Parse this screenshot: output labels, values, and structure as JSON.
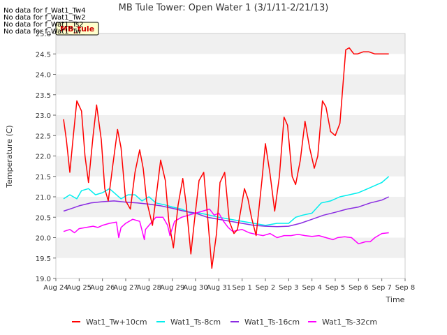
{
  "chart_data": {
    "type": "line",
    "title": "MB Tule Tower: Open Water 1 (3/1/11-2/21/13)",
    "xlabel": "Time",
    "ylabel": "Temperature (C)",
    "ylim": [
      19.0,
      25.0
    ],
    "xlim": [
      0,
      15
    ],
    "grid": "horizontal bands",
    "yticks": [
      "19.0",
      "19.5",
      "20.0",
      "20.5",
      "21.0",
      "21.5",
      "22.0",
      "22.5",
      "23.0",
      "23.5",
      "24.0",
      "24.5",
      "25.0"
    ],
    "xticks": [
      "Aug 24",
      "Aug 25",
      "Aug 26",
      "Aug 27",
      "Aug 28",
      "Aug 29",
      "Aug 30",
      "Aug 31",
      "Sep 1",
      "Sep 2",
      "Sep 3",
      "Sep 4",
      "Sep 5",
      "Sep 6",
      "Sep 7",
      "Sep 8"
    ],
    "no_data_messages": [
      "No data for f_Wat1_Tw4",
      "No data for f_Wat1_Tw2",
      "No data for f_Wat1_Ts2",
      "No data for f_Wat1_Tw_"
    ],
    "tooltip_label": "MB_tule",
    "legend": {
      "placement": "bottom"
    },
    "series": [
      {
        "name": "Wat1_Tw+10cm",
        "color": "#ff0000",
        "x": [
          0.33,
          0.45,
          0.6,
          0.75,
          0.9,
          1.1,
          1.25,
          1.4,
          1.6,
          1.75,
          1.95,
          2.1,
          2.25,
          2.45,
          2.65,
          2.8,
          3.0,
          3.2,
          3.4,
          3.6,
          3.75,
          3.9,
          4.15,
          4.35,
          4.5,
          4.7,
          4.85,
          5.05,
          5.25,
          5.45,
          5.6,
          5.8,
          5.95,
          6.15,
          6.35,
          6.55,
          6.7,
          6.9,
          7.05,
          7.25,
          7.45,
          7.65,
          7.8,
          7.95,
          8.1,
          8.25,
          8.4,
          8.6,
          8.85,
          9.0,
          9.2,
          9.4,
          9.6,
          9.8,
          9.95,
          10.15,
          10.3,
          10.5,
          10.7,
          10.9,
          11.1,
          11.25,
          11.45,
          11.6,
          11.8,
          12.0,
          12.2,
          12.45,
          12.6,
          12.8,
          12.95,
          13.2,
          13.45,
          13.7,
          13.85,
          14.0,
          14.05,
          14.15,
          14.3
        ],
        "values": [
          22.9,
          22.4,
          21.6,
          22.5,
          23.35,
          23.1,
          22.0,
          21.35,
          22.5,
          23.25,
          22.4,
          21.2,
          20.9,
          21.8,
          22.65,
          22.2,
          20.9,
          20.7,
          21.6,
          22.15,
          21.7,
          20.9,
          20.3,
          21.2,
          21.9,
          21.4,
          20.4,
          19.75,
          20.8,
          21.45,
          20.8,
          19.6,
          20.4,
          21.4,
          21.6,
          20.3,
          19.25,
          20.1,
          21.35,
          21.6,
          20.4,
          20.1,
          20.2,
          20.7,
          21.2,
          20.95,
          20.5,
          20.05,
          21.4,
          22.3,
          21.55,
          20.65,
          21.5,
          22.95,
          22.75,
          21.5,
          21.3,
          21.9,
          22.85,
          22.2,
          21.7,
          22.0,
          23.35,
          23.2,
          22.6,
          22.5,
          22.8,
          24.6,
          24.65,
          24.5,
          24.5,
          24.55,
          24.55,
          24.5,
          24.5,
          24.5,
          24.5,
          24.5,
          24.5
        ]
      },
      {
        "name": "Wat1_Ts-8cm",
        "color": "#00eeee",
        "x": [
          0.33,
          0.6,
          0.9,
          1.1,
          1.4,
          1.7,
          2.0,
          2.3,
          2.5,
          2.8,
          3.1,
          3.4,
          3.7,
          4.0,
          4.3,
          4.7,
          5.0,
          5.4,
          5.8,
          6.2,
          6.6,
          7.0,
          7.5,
          8.0,
          8.5,
          9.0,
          9.5,
          10.0,
          10.3,
          10.6,
          11.0,
          11.4,
          11.8,
          12.2,
          12.6,
          13.0,
          13.4,
          13.8,
          14.0,
          14.3
        ],
        "values": [
          20.95,
          21.05,
          20.95,
          21.15,
          21.2,
          21.05,
          21.1,
          21.2,
          21.1,
          20.95,
          21.05,
          21.05,
          20.9,
          21.0,
          20.85,
          20.8,
          20.75,
          20.7,
          20.6,
          20.6,
          20.55,
          20.5,
          20.45,
          20.4,
          20.35,
          20.3,
          20.35,
          20.35,
          20.5,
          20.55,
          20.6,
          20.85,
          20.9,
          21.0,
          21.05,
          21.1,
          21.2,
          21.3,
          21.35,
          21.5
        ]
      },
      {
        "name": "Wat1_Ts-16cm",
        "color": "#8a2be2",
        "x": [
          0.33,
          0.7,
          1.0,
          1.5,
          2.0,
          2.5,
          3.0,
          3.5,
          4.0,
          4.5,
          5.0,
          5.5,
          6.0,
          6.5,
          7.0,
          7.5,
          8.0,
          8.5,
          9.0,
          9.5,
          10.0,
          10.5,
          11.0,
          11.5,
          12.0,
          12.5,
          13.0,
          13.5,
          14.0,
          14.3
        ],
        "values": [
          20.65,
          20.72,
          20.78,
          20.85,
          20.88,
          20.9,
          20.87,
          20.85,
          20.82,
          20.78,
          20.72,
          20.65,
          20.6,
          20.5,
          20.45,
          20.4,
          20.35,
          20.3,
          20.28,
          20.27,
          20.28,
          20.35,
          20.45,
          20.55,
          20.62,
          20.7,
          20.75,
          20.85,
          20.92,
          21.0
        ]
      },
      {
        "name": "Wat1_Ts-32cm",
        "color": "#ff00ff",
        "x": [
          0.33,
          0.6,
          0.8,
          1.0,
          1.3,
          1.6,
          1.8,
          2.0,
          2.3,
          2.6,
          2.7,
          2.8,
          3.0,
          3.3,
          3.6,
          3.8,
          3.85,
          4.0,
          4.3,
          4.6,
          4.8,
          4.9,
          5.1,
          5.4,
          5.7,
          6.0,
          6.3,
          6.6,
          6.8,
          7.0,
          7.2,
          7.4,
          7.6,
          7.8,
          8.0,
          8.3,
          8.6,
          8.9,
          9.2,
          9.5,
          9.8,
          10.1,
          10.4,
          10.7,
          11.0,
          11.3,
          11.6,
          11.9,
          12.1,
          12.4,
          12.7,
          13.0,
          13.3,
          13.5,
          13.7,
          14.0,
          14.3
        ],
        "values": [
          20.15,
          20.2,
          20.12,
          20.22,
          20.25,
          20.28,
          20.25,
          20.3,
          20.35,
          20.38,
          20.0,
          20.25,
          20.35,
          20.45,
          20.4,
          19.95,
          20.2,
          20.3,
          20.5,
          20.5,
          20.3,
          20.05,
          20.4,
          20.5,
          20.55,
          20.6,
          20.65,
          20.7,
          20.55,
          20.6,
          20.4,
          20.25,
          20.15,
          20.18,
          20.2,
          20.12,
          20.08,
          20.05,
          20.1,
          20.0,
          20.05,
          20.05,
          20.08,
          20.05,
          20.03,
          20.05,
          20.0,
          19.95,
          20.0,
          20.02,
          20.0,
          19.85,
          19.9,
          19.9,
          20.0,
          20.1,
          20.12
        ]
      }
    ]
  }
}
